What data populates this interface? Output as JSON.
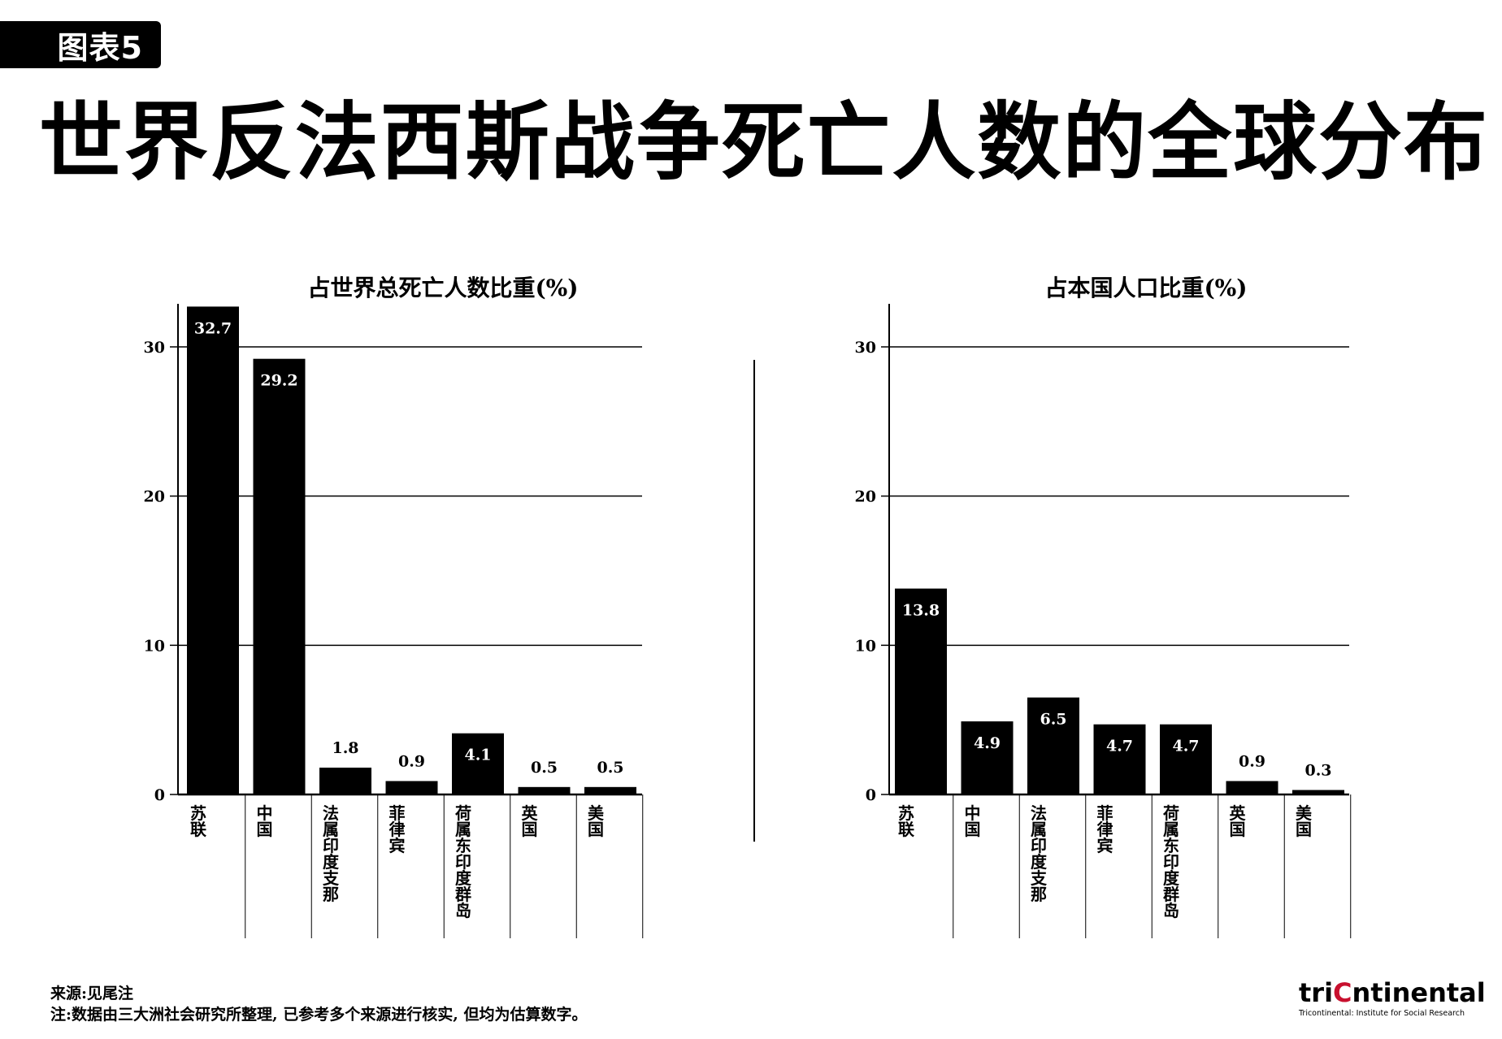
{
  "figure_tag": "图表5",
  "main_title": "世界反法西斯战争死亡人数的全球分布",
  "footer": {
    "source": "来源:见尾注",
    "note": "注:数据由三大洲社会研究所整理, 已参考多个来源进行核实, 但均为估算数字。"
  },
  "logo": {
    "prefix": "tri",
    "highlight": "C",
    "suffix": "ntinental",
    "tagline": "Tricontinental: Institute for Social Research",
    "highlight_color": "#c8102e"
  },
  "colors": {
    "bar": "#000000",
    "bar_label": "#ffffff",
    "text": "#000000"
  },
  "chart_data": [
    {
      "type": "bar",
      "title": "占世界总死亡人数比重(%)",
      "categories": [
        "苏联",
        "中国",
        "法属印度支那",
        "菲律宾",
        "荷属东印度群岛",
        "英国",
        "美国"
      ],
      "values": [
        32.7,
        29.2,
        1.8,
        0.9,
        4.1,
        0.5,
        0.5
      ],
      "ylim": [
        0,
        30
      ],
      "yticks": [
        0,
        10,
        20,
        30
      ],
      "grid": true
    },
    {
      "type": "bar",
      "title": "占本国人口比重(%)",
      "categories": [
        "苏联",
        "中国",
        "法属印度支那",
        "菲律宾",
        "荷属东印度群岛",
        "英国",
        "美国"
      ],
      "values": [
        13.8,
        4.9,
        6.5,
        4.7,
        4.7,
        0.9,
        0.3
      ],
      "ylim": [
        0,
        30
      ],
      "yticks": [
        0,
        10,
        20,
        30
      ],
      "grid": true
    }
  ]
}
